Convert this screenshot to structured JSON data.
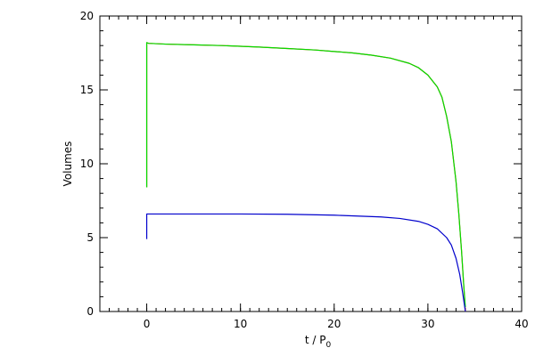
{
  "chart_data": {
    "type": "line",
    "title": "",
    "xlabel_main": "t / P",
    "xlabel_sub": "0",
    "ylabel": "Volumes",
    "xlim": [
      -5,
      40
    ],
    "ylim": [
      0,
      20
    ],
    "xticks": [
      0,
      10,
      20,
      30,
      40
    ],
    "yticks": [
      0,
      5,
      10,
      15,
      20
    ],
    "x_minor_step": 1,
    "y_minor_step": 1,
    "grid": false,
    "legend": "none",
    "series": [
      {
        "color": "#ff3b00",
        "x": [
          0,
          0,
          0.2,
          2,
          5,
          8,
          10,
          12,
          15,
          18,
          20,
          22,
          24,
          26,
          28,
          29,
          30,
          31,
          31.5,
          32,
          32.5,
          33,
          33.3,
          33.6,
          33.8,
          34
        ],
        "y": [
          8.4,
          18.2,
          18.15,
          18.1,
          18.05,
          18.0,
          17.95,
          17.9,
          17.8,
          17.7,
          17.6,
          17.5,
          17.35,
          17.15,
          16.8,
          16.5,
          16.0,
          15.2,
          14.5,
          13.2,
          11.5,
          8.8,
          6.6,
          4.0,
          2.0,
          0.0
        ]
      },
      {
        "color": "#00dd00",
        "x": [
          0,
          0,
          0.2,
          2,
          5,
          8,
          10,
          12,
          15,
          18,
          20,
          22,
          24,
          26,
          28,
          29,
          30,
          31,
          31.5,
          32,
          32.5,
          33,
          33.3,
          33.6,
          33.8,
          34
        ],
        "y": [
          8.4,
          18.2,
          18.15,
          18.1,
          18.05,
          18.0,
          17.95,
          17.9,
          17.8,
          17.7,
          17.6,
          17.5,
          17.35,
          17.15,
          16.8,
          16.5,
          16.0,
          15.2,
          14.5,
          13.2,
          11.5,
          8.8,
          6.6,
          4.0,
          2.0,
          0.3
        ]
      },
      {
        "color": "#0000cc",
        "x": [
          0,
          0,
          0.3,
          5,
          10,
          15,
          20,
          25,
          27,
          29,
          30,
          31,
          32,
          32.5,
          33,
          33.4,
          33.7,
          34
        ],
        "y": [
          4.9,
          6.6,
          6.6,
          6.6,
          6.6,
          6.58,
          6.52,
          6.4,
          6.3,
          6.1,
          5.9,
          5.6,
          5.0,
          4.5,
          3.6,
          2.5,
          1.3,
          0.0
        ]
      }
    ]
  }
}
